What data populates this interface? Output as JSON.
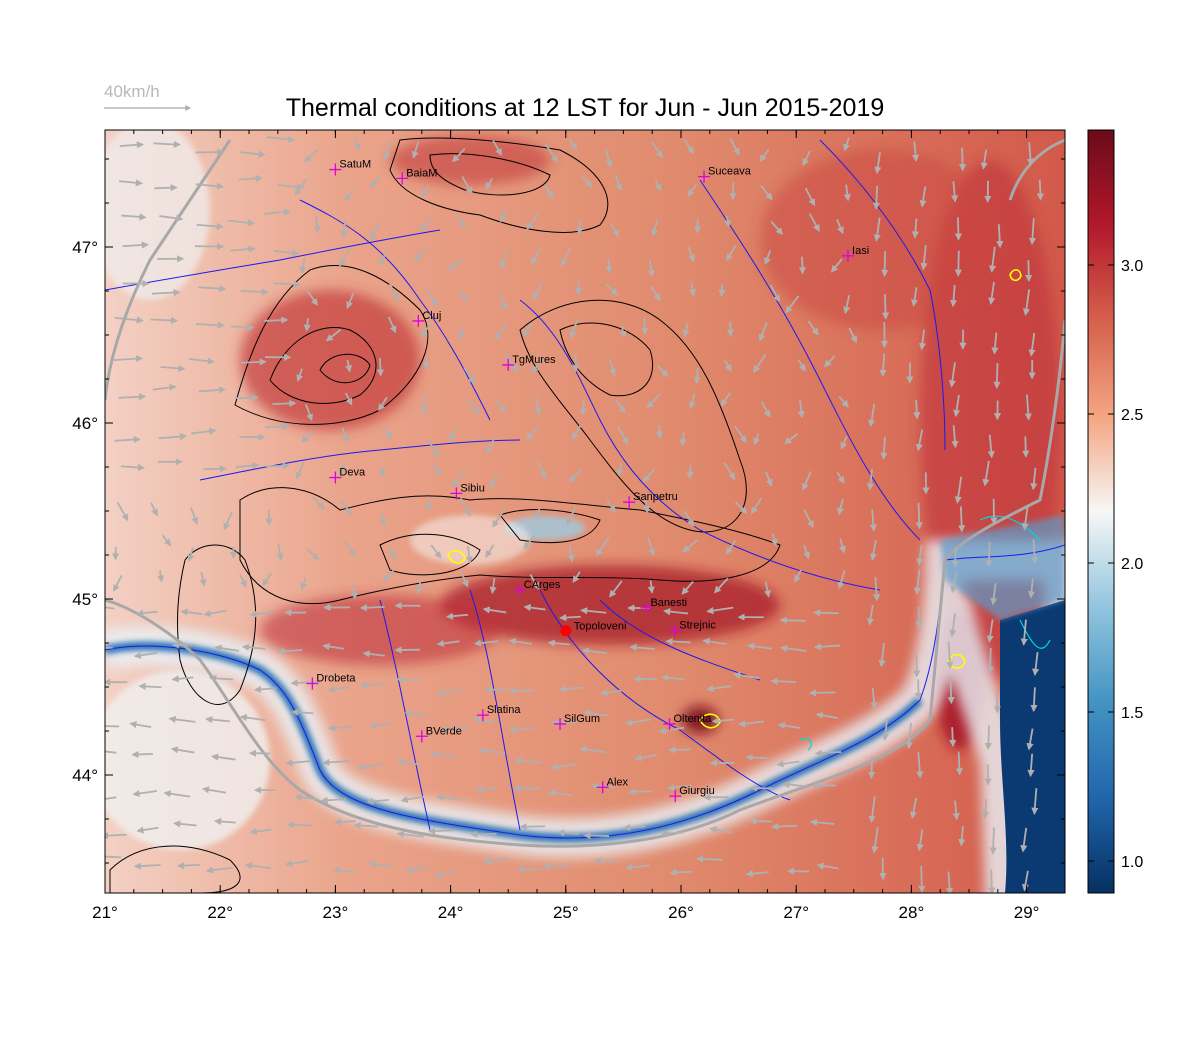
{
  "title": "Thermal conditions at 12 LST for Jun - Jun  2015-2019",
  "wind_scale_label": "40km/h",
  "x_ticks": [
    "21°",
    "22°",
    "23°",
    "24°",
    "25°",
    "26°",
    "27°",
    "28°",
    "29°"
  ],
  "y_ticks": [
    "47°",
    "46°",
    "45°",
    "44°"
  ],
  "colorbar": {
    "ticks": [
      "3.0",
      "2.5",
      "2.0",
      "1.5",
      "1.0"
    ],
    "colors": [
      "#6b0a1a",
      "#b2182b",
      "#d6604d",
      "#f4a582",
      "#f7f7f7",
      "#92c5de",
      "#4393c3",
      "#2166ac",
      "#053061"
    ]
  },
  "cities": [
    {
      "name": "SatuM",
      "lon": 23.0,
      "lat": 47.44
    },
    {
      "name": "BaiaM",
      "lon": 23.58,
      "lat": 47.39
    },
    {
      "name": "Suceava",
      "lon": 26.2,
      "lat": 47.4
    },
    {
      "name": "Iasi",
      "lon": 27.45,
      "lat": 46.95
    },
    {
      "name": "Cluj",
      "lon": 23.72,
      "lat": 46.58
    },
    {
      "name": "TgMures",
      "lon": 24.5,
      "lat": 46.33
    },
    {
      "name": "Deva",
      "lon": 23.0,
      "lat": 45.69
    },
    {
      "name": "Sibiu",
      "lon": 24.05,
      "lat": 45.6
    },
    {
      "name": "Sanpetru",
      "lon": 25.55,
      "lat": 45.55
    },
    {
      "name": "CArges",
      "lon": 24.6,
      "lat": 45.05
    },
    {
      "name": "Banesti",
      "lon": 25.7,
      "lat": 44.95
    },
    {
      "name": "Strejnic",
      "lon": 25.95,
      "lat": 44.82
    },
    {
      "name": "Drobeta",
      "lon": 22.8,
      "lat": 44.52
    },
    {
      "name": "Slatina",
      "lon": 24.28,
      "lat": 44.34
    },
    {
      "name": "SilGum",
      "lon": 24.95,
      "lat": 44.29
    },
    {
      "name": "Oltenita",
      "lon": 25.9,
      "lat": 44.29
    },
    {
      "name": "BVerde",
      "lon": 23.75,
      "lat": 44.22
    },
    {
      "name": "Alex",
      "lon": 25.32,
      "lat": 43.93
    },
    {
      "name": "Giurgiu",
      "lon": 25.95,
      "lat": 43.88
    }
  ],
  "highlight": {
    "name": "Topoloveni",
    "lon": 25.0,
    "lat": 44.82,
    "color": "#ff0000"
  },
  "colors": {
    "city_marker": "#e000e0",
    "river": "#1a1aee",
    "border": "#a8a8a8",
    "contour": "#000000",
    "wind": "#b0b0b0",
    "lake": "#00d8d8",
    "hot_contour": "#ffff00"
  }
}
